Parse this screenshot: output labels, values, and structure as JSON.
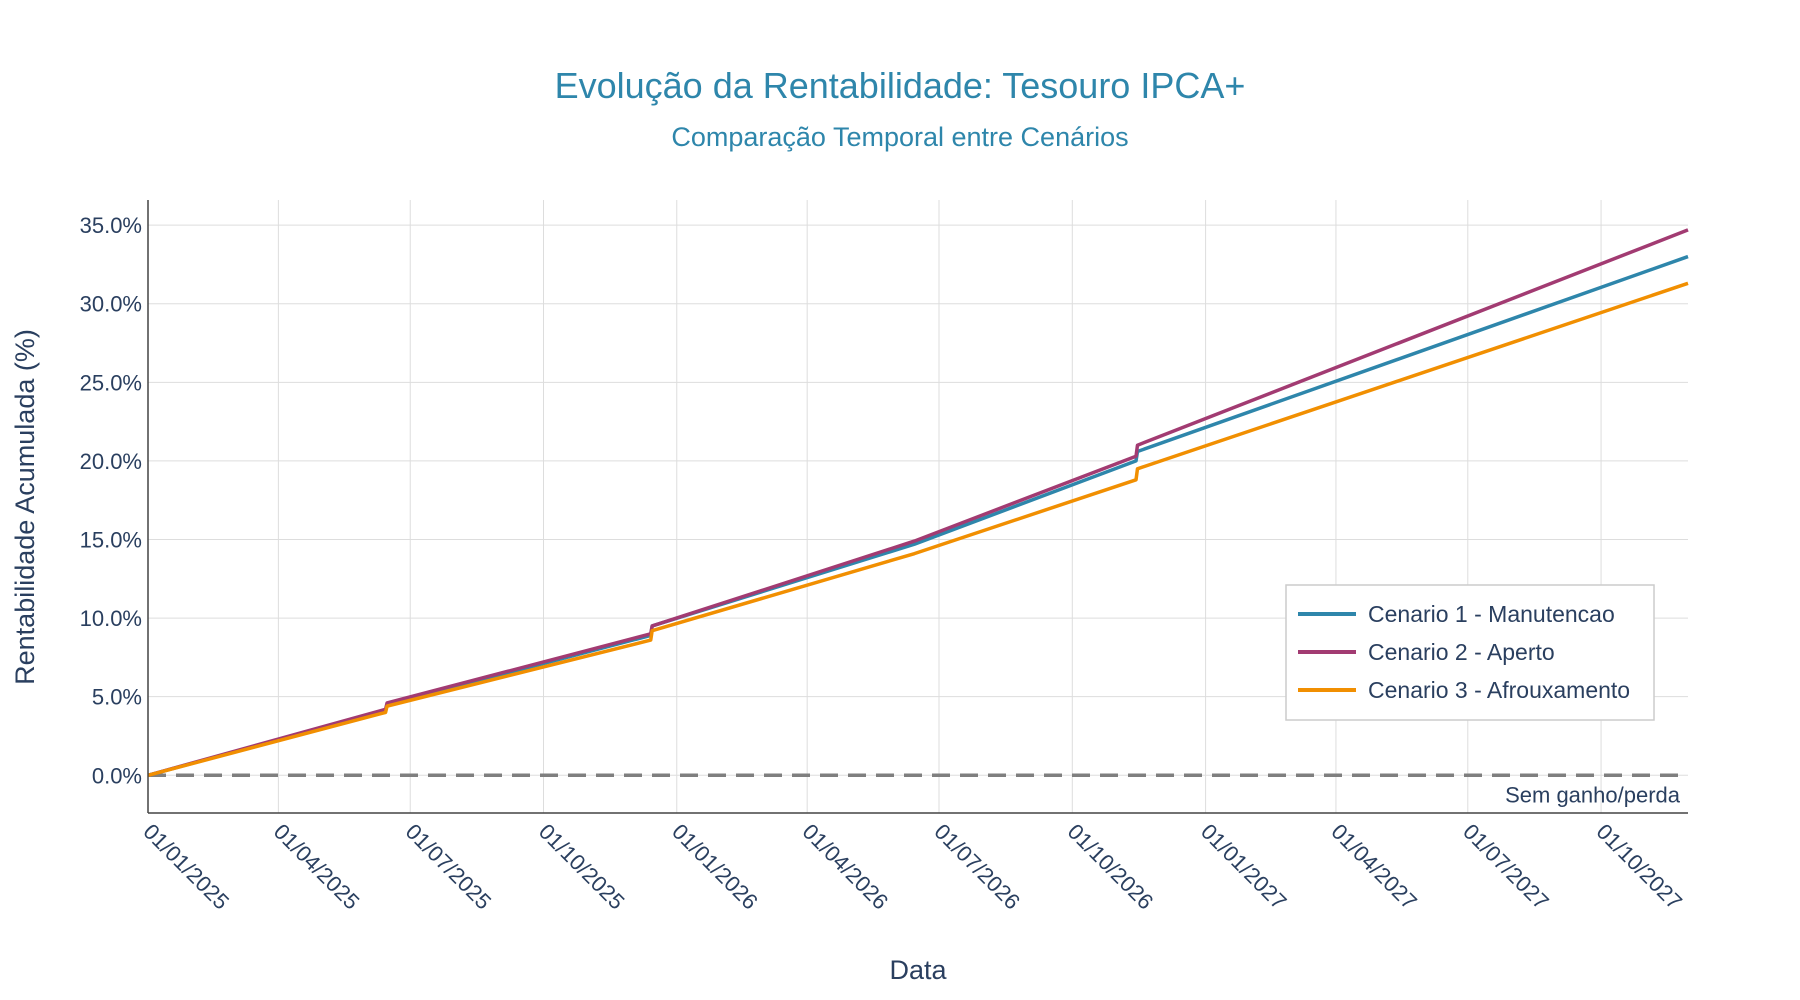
{
  "chart_data": {
    "type": "line",
    "title": "Evolução da Rentabilidade: Tesouro IPCA+",
    "subtitle": "Comparação Temporal entre Cenários",
    "xlabel": "Data",
    "ylabel": "Rentabilidade Acumulada (%)",
    "x_range": [
      "2025-01-01",
      "2027-11-30"
    ],
    "ylim": [
      -2.4,
      36.6
    ],
    "x_ticks": [
      "01/01/2025",
      "01/04/2025",
      "01/07/2025",
      "01/10/2025",
      "01/01/2026",
      "01/04/2026",
      "01/07/2026",
      "01/10/2026",
      "01/01/2027",
      "01/04/2027",
      "01/07/2027",
      "01/10/2027"
    ],
    "x_tick_dates": [
      "2025-01-01",
      "2025-04-01",
      "2025-07-01",
      "2025-10-01",
      "2026-01-01",
      "2026-04-01",
      "2026-07-01",
      "2026-10-01",
      "2027-01-01",
      "2027-04-01",
      "2027-07-01",
      "2027-10-01"
    ],
    "y_ticks": [
      0,
      5,
      10,
      15,
      20,
      25,
      30,
      35
    ],
    "y_tick_labels": [
      "0.0%",
      "5.0%",
      "10.0%",
      "15.0%",
      "20.0%",
      "25.0%",
      "30.0%",
      "35.0%"
    ],
    "grid": true,
    "legend_position": "right",
    "series": [
      {
        "name": "Cenario 1 - Manutencao",
        "color": "#2e86ab",
        "x": [
          "2025-01-01",
          "2025-06-14",
          "2025-06-15",
          "2025-12-14",
          "2025-12-15",
          "2026-06-14",
          "2026-11-14",
          "2026-11-15",
          "2027-11-30"
        ],
        "y": [
          0.0,
          4.1,
          4.5,
          8.9,
          9.5,
          14.7,
          20.0,
          20.6,
          33.0
        ]
      },
      {
        "name": "Cenario 2 - Aperto",
        "color": "#a23b72",
        "x": [
          "2025-01-01",
          "2025-06-14",
          "2025-06-15",
          "2025-12-14",
          "2025-12-15",
          "2026-06-14",
          "2026-11-14",
          "2026-11-15",
          "2027-11-30"
        ],
        "y": [
          0.0,
          4.2,
          4.6,
          9.0,
          9.5,
          14.9,
          20.3,
          21.0,
          34.7
        ]
      },
      {
        "name": "Cenario 3 - Afrouxamento",
        "color": "#f18f01",
        "x": [
          "2025-01-01",
          "2025-06-14",
          "2025-06-15",
          "2025-12-14",
          "2025-12-15",
          "2026-06-14",
          "2026-11-14",
          "2026-11-15",
          "2027-11-30"
        ],
        "y": [
          0.0,
          4.0,
          4.4,
          8.6,
          9.2,
          14.1,
          18.8,
          19.5,
          31.3
        ]
      }
    ],
    "reference_line": {
      "y": 0,
      "label": "Sem ganho/perda",
      "color": "#7f7f7f"
    }
  }
}
